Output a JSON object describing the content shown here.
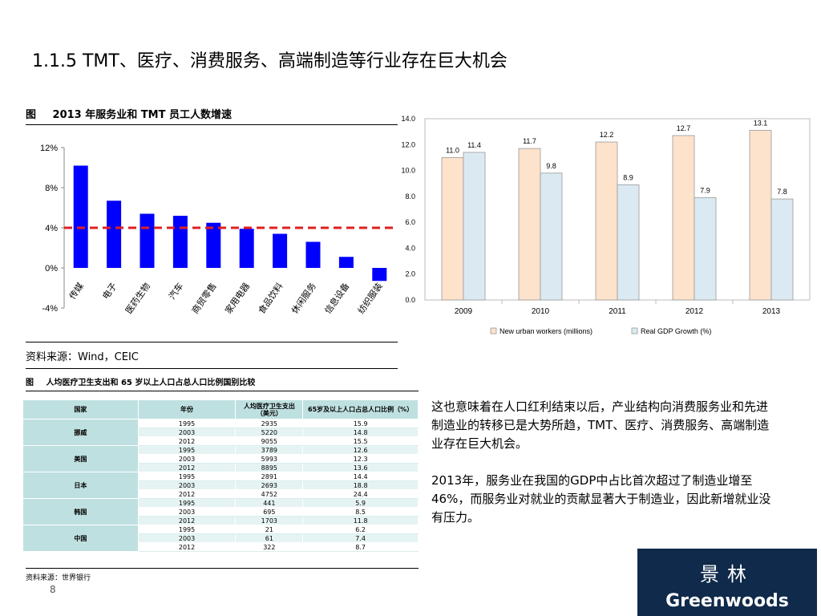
{
  "title": "1.1.5 TMT、医疗、消费服务、高端制造等行业存在巨大机会",
  "figure1": {
    "label": "图",
    "title": "2013 年服务业和 TMT 员工人数增速",
    "source": "资料来源：Wind，CEIC"
  },
  "table": {
    "label": "图",
    "title": "人均医疗卫生支出和 65 岁以上人口占总人口比例国别比较",
    "headers": [
      "国家",
      "年份",
      "人均医疗卫生支出（美元）",
      "65岁及以上人口占总人口比例（%）"
    ],
    "groups": [
      {
        "country": "挪威",
        "rows": [
          [
            "1995",
            "2935",
            "15.9"
          ],
          [
            "2003",
            "5220",
            "14.8"
          ],
          [
            "2012",
            "9055",
            "15.5"
          ]
        ]
      },
      {
        "country": "美国",
        "rows": [
          [
            "1995",
            "3789",
            "12.6"
          ],
          [
            "2003",
            "5993",
            "12.3"
          ],
          [
            "2012",
            "8895",
            "13.6"
          ]
        ]
      },
      {
        "country": "日本",
        "rows": [
          [
            "1995",
            "2891",
            "14.4"
          ],
          [
            "2003",
            "2693",
            "18.8"
          ],
          [
            "2012",
            "4752",
            "24.4"
          ]
        ]
      },
      {
        "country": "韩国",
        "rows": [
          [
            "1995",
            "441",
            "5.9"
          ],
          [
            "2003",
            "695",
            "8.5"
          ],
          [
            "2012",
            "1703",
            "11.8"
          ]
        ]
      },
      {
        "country": "中国",
        "rows": [
          [
            "1995",
            "21",
            "6.2"
          ],
          [
            "2003",
            "61",
            "7.4"
          ],
          [
            "2012",
            "322",
            "8.7"
          ]
        ]
      }
    ],
    "source": "资料来源：世界银行"
  },
  "body": {
    "para1": "这也意味着在人口红利结束以后，产业结构向消费服务业和先进制造业的转移已是大势所趋，TMT、医疗、消费服务、高端制造业存在巨大机会。",
    "para2": "2013年，服务业在我国的GDP中占比首次超过了制造业增至46%，而服务业对就业的贡献显著大于制造业，因此新增就业没有压力。"
  },
  "page_number": "8",
  "logo": {
    "cn": "景林",
    "en": "Greenwoods",
    "bg_color": "#0f2a4a"
  },
  "chart_data": [
    {
      "type": "bar",
      "categories": [
        "传媒",
        "电子",
        "医药生物",
        "汽车",
        "商贸零售",
        "家用电器",
        "食品饮料",
        "休闲服务",
        "信息设备",
        "纺织服装"
      ],
      "values": [
        10.2,
        6.7,
        5.4,
        5.2,
        4.5,
        3.9,
        3.4,
        2.6,
        1.1,
        -1.3
      ],
      "reference_line": 4,
      "yticks": [
        "-4%",
        "0%",
        "4%",
        "8%",
        "12%"
      ],
      "ylim": [
        -4,
        12
      ],
      "bar_color": "#0000ff",
      "ref_color": "#e02020"
    },
    {
      "type": "bar",
      "categories": [
        "2009",
        "2010",
        "2011",
        "2012",
        "2013"
      ],
      "series": [
        {
          "name": "New urban workers (millions)",
          "values": [
            11.0,
            11.7,
            12.2,
            12.7,
            13.1
          ],
          "color": "#fde2cc"
        },
        {
          "name": "Real GDP Growth (%)",
          "values": [
            11.4,
            9.8,
            8.9,
            7.9,
            7.8
          ],
          "color": "#dbeaf2"
        }
      ],
      "yticks": [
        "0.0",
        "2.0",
        "4.0",
        "6.0",
        "8.0",
        "10.0",
        "12.0",
        "14.0"
      ],
      "ylim": [
        0,
        14
      ],
      "legend": "bottom"
    }
  ]
}
